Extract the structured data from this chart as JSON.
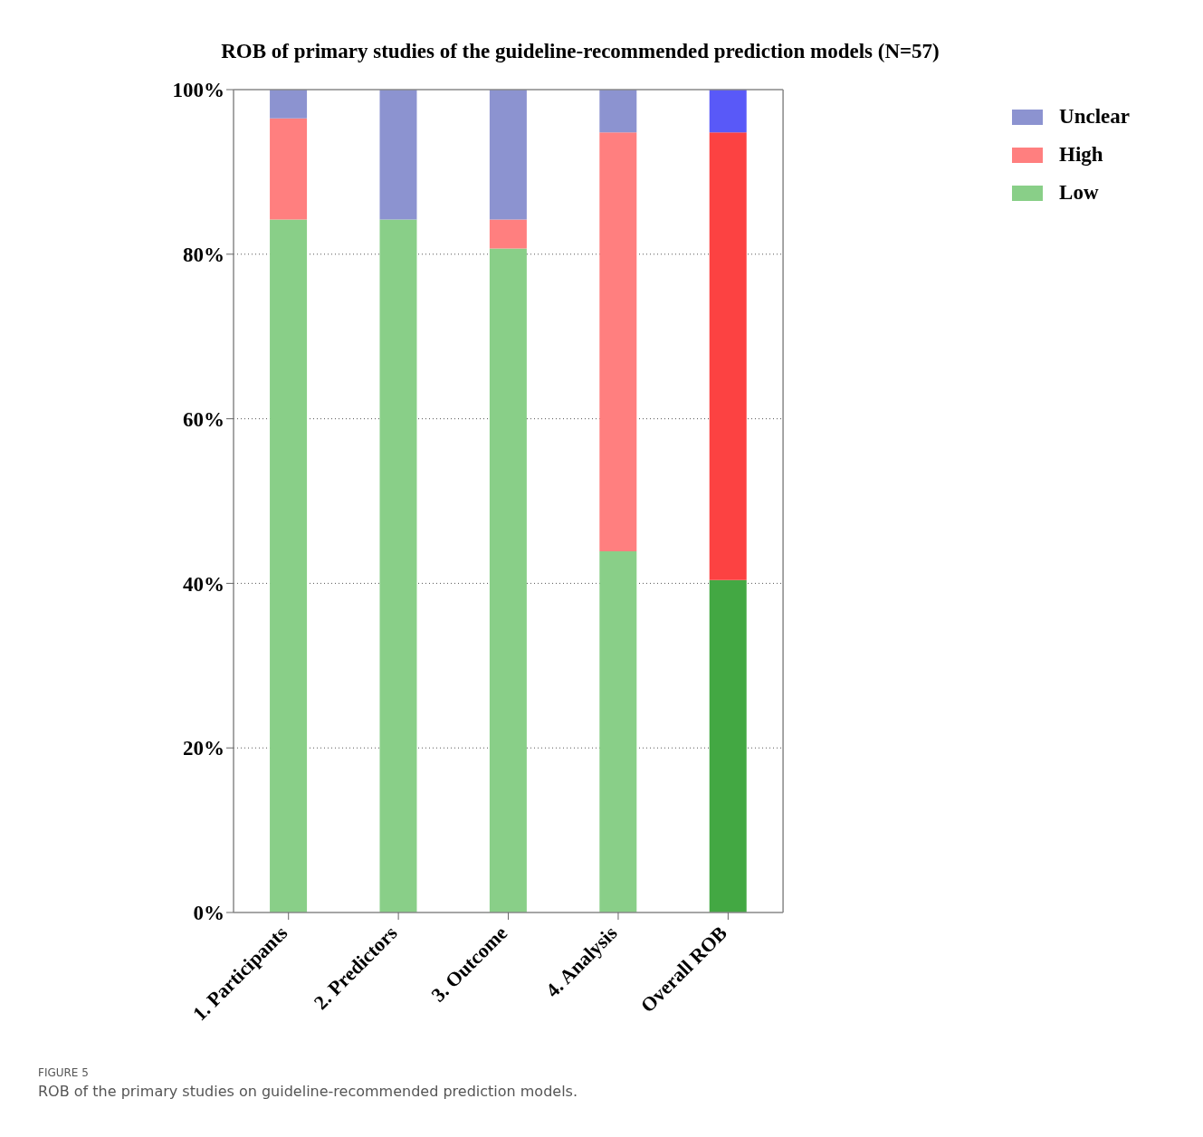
{
  "chart_data": {
    "type": "bar",
    "stacked": true,
    "title": "ROB of primary studies of the guideline-recommended prediction models (N=57)",
    "categories": [
      "1. Participants",
      "2. Predictors",
      "3. Outcome",
      "4. Analysis",
      "Overall ROB"
    ],
    "series": [
      {
        "name": "Low",
        "color": "#89cf88",
        "colors": [
          "#89cf88",
          "#89cf88",
          "#89cf88",
          "#89cf88",
          "#43a843"
        ],
        "values": [
          84.2,
          84.2,
          80.7,
          43.9,
          40.4
        ]
      },
      {
        "name": "High",
        "color": "#ff7f7f",
        "colors": [
          "#ff7f7f",
          "#ff7f7f",
          "#ff7f7f",
          "#ff7f7f",
          "#fc4242"
        ],
        "values": [
          12.3,
          0,
          3.5,
          50.9,
          54.4
        ]
      },
      {
        "name": "Unclear",
        "color": "#8c93d0",
        "colors": [
          "#8c93d0",
          "#8c93d0",
          "#8c93d0",
          "#8c93d0",
          "#5959f8"
        ],
        "values": [
          3.5,
          15.8,
          15.8,
          5.3,
          5.3
        ]
      }
    ],
    "ylim": [
      0,
      100
    ],
    "yticks": [
      {
        "value": 0,
        "label": "0%"
      },
      {
        "value": 20,
        "label": "20%"
      },
      {
        "value": 40,
        "label": "40%"
      },
      {
        "value": 60,
        "label": "60%"
      },
      {
        "value": 80,
        "label": "80%"
      },
      {
        "value": 100,
        "label": "100%"
      }
    ],
    "grid": "y",
    "legend": "top right",
    "annotations": [
      "FIGURE 5",
      "ROB of the primary studies on guideline-recommended prediction models."
    ]
  }
}
